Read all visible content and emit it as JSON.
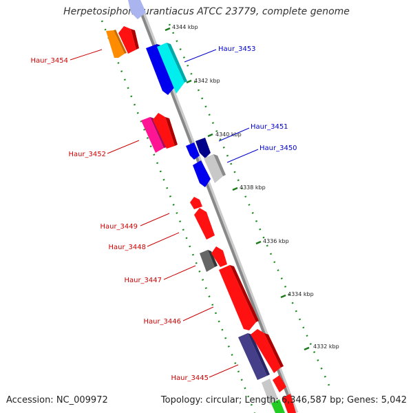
{
  "title": "Herpetosiphon aurantiacus ATCC 23779, complete genome",
  "footer": {
    "accession": "Accession: NC_009972",
    "topology": "Topology: circular; Length: 6,346,587 bp; Genes: 5,042"
  },
  "ticks": [
    "4344 kbp",
    "4342 kbp",
    "4340 kbp",
    "4338 kbp",
    "4336 kbp",
    "4334 kbp",
    "4332 kbp"
  ],
  "genes_left": [
    {
      "label": "Haur_3454",
      "color": "#cc0000"
    },
    {
      "label": "Haur_3452",
      "color": "#cc0000"
    },
    {
      "label": "Haur_3449",
      "color": "#cc0000"
    },
    {
      "label": "Haur_3448",
      "color": "#cc0000"
    },
    {
      "label": "Haur_3447",
      "color": "#cc0000"
    },
    {
      "label": "Haur_3446",
      "color": "#cc0000"
    },
    {
      "label": "Haur_3445",
      "color": "#cc0000"
    }
  ],
  "genes_right": [
    {
      "label": "Haur_3453",
      "color": "#0000cc"
    },
    {
      "label": "Haur_3451",
      "color": "#0000cc"
    },
    {
      "label": "Haur_3450",
      "color": "#0000cc"
    }
  ]
}
